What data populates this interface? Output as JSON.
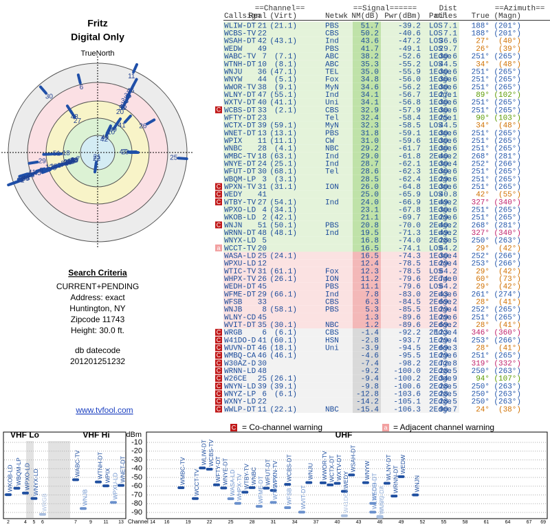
{
  "left": {
    "name": "Fritz",
    "mode": "Digital Only",
    "north": "TrueNorth",
    "criteria_title": "Search Criteria",
    "criteria": [
      "CURRENT+PENDING",
      "Address: exact",
      "Huntington, NY",
      "Zipcode 11743",
      "Height: 30.0 ft."
    ],
    "db_label": "db datecode",
    "db_code": "201201251232",
    "link": "www.tvfool.com"
  },
  "table": {
    "groups": [
      "==Channel==",
      "==Signal======",
      "Dist",
      "==Azimuth=="
    ],
    "headers": [
      "Callsign",
      "Real",
      "(Virt)",
      "Netwk",
      "NM(dB)",
      "Pwr(dBm)",
      "Path",
      "miles",
      "True",
      "(Magn)"
    ],
    "rows": [
      [
        "WLIW-DT",
        "21",
        "(21.1)",
        "PBS",
        "51.7",
        "-39.2",
        "LOS",
        "7.1",
        "188°",
        "(201°)"
      ],
      [
        "WCBS-TV",
        "22",
        null,
        "CBS",
        "50.2",
        "-40.6",
        "LOS",
        "7.1",
        "188°",
        "(201°)"
      ],
      [
        "WSAH-DT",
        "42",
        "(43.1)",
        "Ind",
        "43.6",
        "-47.2",
        "LOS",
        "36.6",
        "27°",
        "(40°)"
      ],
      [
        "WEDW",
        "49",
        null,
        "PBS",
        "41.7",
        "-49.1",
        "LOS",
        "29.7",
        "26°",
        "(39°)"
      ],
      [
        "WABC-TV",
        "7",
        "(7.1)",
        "ABC",
        "38.2",
        "-52.6",
        "1Edge",
        "30.6",
        "251°",
        "(265°)"
      ],
      [
        "WTNH-DT",
        "10",
        "(8.1)",
        "ABC",
        "35.3",
        "-55.2",
        "LOS",
        "44.5",
        "34°",
        "(48°)"
      ],
      [
        "WNJU",
        "36",
        "(47.1)",
        "TEL",
        "35.0",
        "-55.9",
        "1Edge",
        "30.6",
        "251°",
        "(265°)"
      ],
      [
        "WNYW",
        "44",
        "(5.1)",
        "Fox",
        "34.8",
        "-56.0",
        "1Edge",
        "30.6",
        "251°",
        "(265°)"
      ],
      [
        "WWOR-TV",
        "38",
        "(9.1)",
        "MyN",
        "34.6",
        "-56.2",
        "1Edge",
        "30.6",
        "251°",
        "(265°)"
      ],
      [
        "WLNY-DT",
        "47",
        "(55.1)",
        "Ind",
        "34.1",
        "-56.7",
        "1Edge",
        "27.1",
        "89°",
        "(102°)"
      ],
      [
        "WXTV-DT",
        "40",
        "(41.1)",
        "Uni",
        "34.1",
        "-56.8",
        "1Edge",
        "30.6",
        "251°",
        "(265°)"
      ],
      [
        "WCBS-DT",
        "33",
        "(2.1)",
        "CBS",
        "32.9",
        "-57.9",
        "1Edge",
        "30.6",
        "251°",
        "(265°)",
        "C"
      ],
      [
        "WFTY-DT",
        "23",
        null,
        "Tel",
        "32.4",
        "-58.4",
        "1Edge",
        "25.1",
        "90°",
        "(103°)"
      ],
      [
        "WCTX-DT",
        "39",
        "(59.1)",
        "MyN",
        "32.3",
        "-58.5",
        "LOS",
        "44.5",
        "34°",
        "(48°)"
      ],
      [
        "WNET-DT",
        "13",
        "(13.1)",
        "PBS",
        "31.8",
        "-59.1",
        "1Edge",
        "30.6",
        "251°",
        "(265°)"
      ],
      [
        "WPIX",
        "11",
        "(11.1)",
        "CW",
        "31.0",
        "-59.6",
        "1Edge",
        "30.6",
        "251°",
        "(265°)"
      ],
      [
        "WNBC",
        "28",
        "(4.1)",
        "NBC",
        "29.2",
        "-61.7",
        "1Edge",
        "30.6",
        "251°",
        "(265°)"
      ],
      [
        "WMBC-TV",
        "18",
        "(63.1)",
        "Ind",
        "29.0",
        "-61.8",
        "2Edge",
        "40.2",
        "268°",
        "(281°)"
      ],
      [
        "WNYE-DT",
        "24",
        "(25.1)",
        "Ind",
        "28.7",
        "-62.1",
        "1Edge",
        "30.4",
        "252°",
        "(266°)"
      ],
      [
        "WFUT-DT",
        "30",
        "(68.1)",
        "Tel",
        "28.6",
        "-62.3",
        "1Edge",
        "30.6",
        "251°",
        "(265°)"
      ],
      [
        "WBQM-LP",
        "3",
        "(3.1)",
        null,
        "28.5",
        "-62.4",
        "1Edge",
        "29.6",
        "251°",
        "(265°)"
      ],
      [
        "WPXN-TV",
        "31",
        "(31.1)",
        "ION",
        "26.0",
        "-64.8",
        "1Edge",
        "30.6",
        "251°",
        "(265°)",
        "C"
      ],
      [
        "WEDY",
        "41",
        null,
        null,
        "25.0",
        "-65.9",
        "LOS",
        "40.8",
        "42°",
        "(55°)",
        "C"
      ],
      [
        "WTBY-TV",
        "27",
        "(54.1)",
        "Ind",
        "24.0",
        "-66.9",
        "1Edge",
        "49.2",
        "327°",
        "(340°)",
        "C"
      ],
      [
        "WPXO-LD",
        "4",
        "(34.1)",
        null,
        "23.1",
        "-67.8",
        "1Edge",
        "30.6",
        "251°",
        "(265°)"
      ],
      [
        "WKOB-LD",
        "2",
        "(42.1)",
        null,
        "21.1",
        "-69.7",
        "1Edge",
        "29.6",
        "251°",
        "(265°)"
      ],
      [
        "WNJN",
        "51",
        "(50.1)",
        "PBS",
        "20.8",
        "-70.0",
        "2Edge",
        "40.2",
        "268°",
        "(281°)",
        "C"
      ],
      [
        "WRNN-DT",
        "48",
        "(48.1)",
        "Ind",
        "19.5",
        "-71.3",
        "1Edge",
        "49.2",
        "327°",
        "(340°)"
      ],
      [
        "WNYX-LD",
        "5",
        null,
        null,
        "16.8",
        "-74.0",
        "2Edge",
        "28.5",
        "250°",
        "(263°)"
      ],
      [
        "WCCT-TV",
        "20",
        null,
        null,
        "16.5",
        "-74.1",
        "LOS",
        "64.2",
        "29°",
        "(42°)",
        "a"
      ],
      [
        "WASA-LD",
        "25",
        "(24.1)",
        null,
        "16.5",
        "-74.3",
        "1Edge",
        "30.4",
        "252°",
        "(266°)"
      ],
      [
        "WPXU-LD",
        "12",
        null,
        null,
        "12.4",
        "-78.5",
        "1Edge",
        "29.4",
        "253°",
        "(266°)"
      ],
      [
        "WTIC-TV",
        "31",
        "(61.1)",
        "Fox",
        "12.3",
        "-78.5",
        "LOS",
        "64.2",
        "29°",
        "(42°)"
      ],
      [
        "WHPX-TV",
        "26",
        "(26.1)",
        "ION",
        "11.2",
        "-79.6",
        "2Edge",
        "74.0",
        "60°",
        "(73°)"
      ],
      [
        "WEDH-DT",
        "45",
        null,
        "PBS",
        "11.1",
        "-79.6",
        "LOS",
        "64.2",
        "29°",
        "(42°)"
      ],
      [
        "WFME-DT",
        "29",
        "(66.1)",
        "Ind",
        "7.8",
        "-83.0",
        "2Edge",
        "43.6",
        "261°",
        "(274°)"
      ],
      [
        "WFSB",
        "33",
        null,
        "CBS",
        "6.3",
        "-84.5",
        "2Edge",
        "69.2",
        "28°",
        "(41°)"
      ],
      [
        "WNJB",
        "8",
        "(58.1)",
        "PBS",
        "5.3",
        "-85.5",
        "1Edge",
        "29.4",
        "252°",
        "(265°)"
      ],
      [
        "WLNY-CD",
        "45",
        null,
        null,
        "1.3",
        "-89.6",
        "1Edge",
        "29.6",
        "251°",
        "(265°)"
      ],
      [
        "WVIT-DT",
        "35",
        "(30.1)",
        "NBC",
        "1.2",
        "-89.6",
        "2Edge",
        "69.2",
        "28°",
        "(41°)"
      ],
      [
        "WRGB",
        "6",
        "(6.1)",
        "CBS",
        "-1.4",
        "-92.2",
        "2Edge",
        "123.4",
        "346°",
        "(360°)",
        "C"
      ],
      [
        "W41DO-D",
        "41",
        "(60.1)",
        "HSN",
        "-2.8",
        "-93.7",
        "1Edge",
        "29.4",
        "253°",
        "(266°)",
        "C"
      ],
      [
        "WUVN-DT",
        "46",
        "(18.1)",
        "Uni",
        "-3.9",
        "-94.5",
        "2Edge",
        "69.3",
        "28°",
        "(41°)",
        "C"
      ],
      [
        "WMBQ-CA",
        "46",
        "(46.1)",
        null,
        "-4.6",
        "-95.5",
        "1Edge",
        "29.6",
        "251°",
        "(265°)",
        "C"
      ],
      [
        "W30AZ-D",
        "30",
        null,
        null,
        "-7.4",
        "-98.2",
        "2Edge",
        "72.8",
        "319°",
        "(332°)",
        "C"
      ],
      [
        "WRNN-LD",
        "48",
        null,
        null,
        "-9.2",
        "-100.0",
        "2Edge",
        "28.5",
        "250°",
        "(263°)",
        "C"
      ],
      [
        "W26CE",
        "25",
        "(26.1)",
        null,
        "-9.4",
        "-100.2",
        "2Edge",
        "34.9",
        "94°",
        "(107°)",
        "C"
      ],
      [
        "WNYN-LD",
        "39",
        "(39.1)",
        null,
        "-9.8",
        "-100.6",
        "2Edge",
        "28.5",
        "250°",
        "(263°)",
        "C"
      ],
      [
        "WNYZ-LP",
        "6",
        "(6.1)",
        null,
        "-12.8",
        "-103.6",
        "2Edge",
        "28.5",
        "250°",
        "(263°)",
        "C"
      ],
      [
        "WXNY-LD",
        "22",
        null,
        null,
        "-14.2",
        "-105.1",
        "2Edge",
        "28.5",
        "250°",
        "(263°)",
        "C"
      ],
      [
        "WWLP-DT",
        "11",
        "(22.1)",
        "NBC",
        "-15.4",
        "-106.3",
        "2Edge",
        "90.7",
        "24°",
        "(38°)",
        "C"
      ]
    ]
  },
  "legend": {
    "co_mark": "C",
    "co": "= Co-channel warning",
    "adj_mark": "a",
    "adj": "= Adjacent channel warning"
  },
  "spectrum": {
    "vhf_lo": "VHF Lo",
    "vhf_hi": "VHF Hi",
    "uhf": "UHF",
    "unit": "dBm",
    "x_label": "Channel",
    "yticks": [
      -10,
      -20,
      -30,
      -40,
      -50,
      -60,
      -70,
      -80,
      -90
    ],
    "vhf_ticks": [
      2,
      4,
      5,
      6,
      7,
      9,
      11,
      13
    ],
    "uhf_ticks": [
      14,
      16,
      19,
      22,
      25,
      28,
      31,
      34,
      37,
      40,
      43,
      46,
      49,
      52,
      55,
      58,
      61,
      64,
      67,
      69
    ]
  }
}
